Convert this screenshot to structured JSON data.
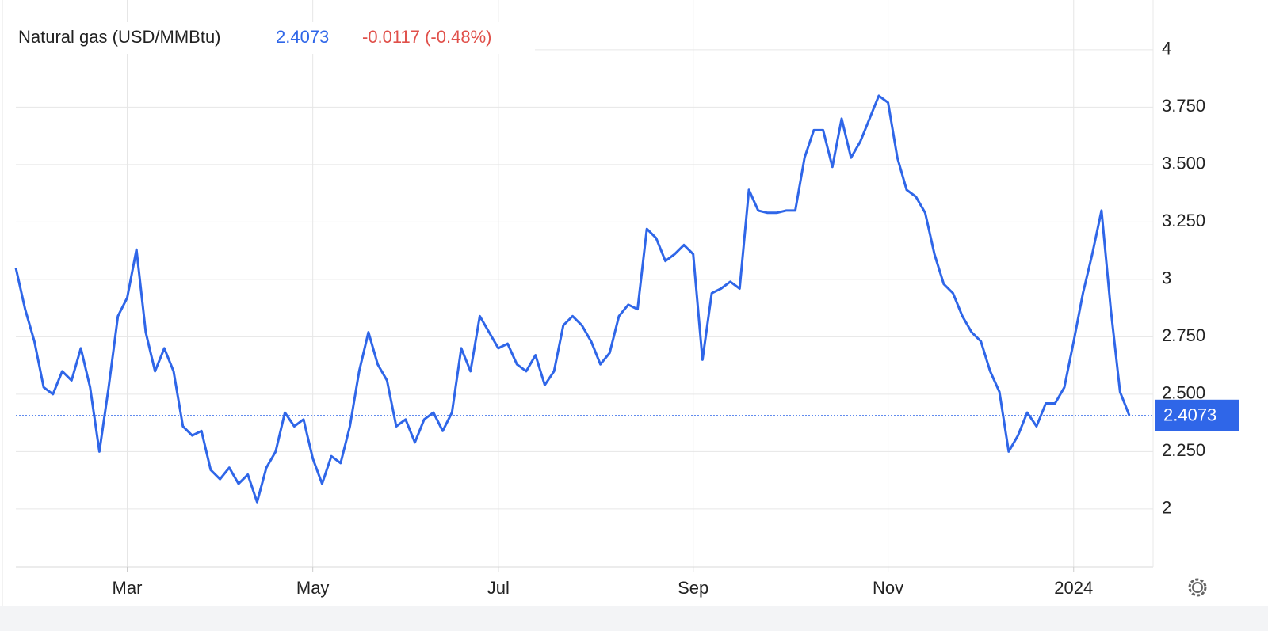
{
  "chart_data": {
    "type": "line",
    "title": "Natural gas (USD/MMBtu)",
    "current_value": 2.4073,
    "change": "-0.0117 (-0.48%)",
    "categories": [
      null,
      null,
      null,
      null,
      null,
      null,
      null,
      null,
      null,
      null,
      null,
      null,
      "Mar",
      null,
      null,
      null,
      null,
      null,
      null,
      null,
      null,
      null,
      null,
      null,
      null,
      null,
      null,
      null,
      null,
      null,
      null,
      null,
      "May",
      null,
      null,
      null,
      null,
      null,
      null,
      null,
      null,
      null,
      null,
      null,
      null,
      null,
      null,
      null,
      null,
      null,
      null,
      null,
      "Jul",
      null,
      null,
      null,
      null,
      null,
      null,
      null,
      null,
      null,
      null,
      null,
      null,
      null,
      null,
      null,
      null,
      null,
      null,
      null,
      null,
      "Sep",
      null,
      null,
      null,
      null,
      null,
      null,
      null,
      null,
      null,
      null,
      null,
      null,
      null,
      null,
      null,
      null,
      null,
      null,
      null,
      null,
      "Nov",
      null,
      null,
      null,
      null,
      null,
      null,
      null,
      null,
      null,
      null,
      null,
      null,
      null,
      null,
      null,
      null,
      null,
      null,
      null,
      "2024",
      null,
      null,
      null,
      null,
      null,
      null
    ],
    "series": [
      {
        "name": "Natural gas (USD/MMBtu)",
        "color": "#2f66e8",
        "values": [
          3.05,
          2.87,
          2.73,
          2.53,
          2.5,
          2.6,
          2.56,
          2.7,
          2.53,
          2.25,
          2.53,
          2.84,
          2.92,
          3.13,
          2.77,
          2.6,
          2.7,
          2.6,
          2.36,
          2.32,
          2.34,
          2.17,
          2.13,
          2.18,
          2.11,
          2.15,
          2.03,
          2.18,
          2.25,
          2.42,
          2.36,
          2.39,
          2.22,
          2.11,
          2.23,
          2.2,
          2.36,
          2.6,
          2.77,
          2.63,
          2.56,
          2.36,
          2.39,
          2.29,
          2.39,
          2.42,
          2.34,
          2.42,
          2.7,
          2.6,
          2.84,
          2.77,
          2.7,
          2.72,
          2.63,
          2.6,
          2.67,
          2.54,
          2.6,
          2.8,
          2.84,
          2.8,
          2.73,
          2.63,
          2.68,
          2.84,
          2.89,
          2.87,
          3.22,
          3.18,
          3.08,
          3.11,
          3.15,
          3.11,
          2.65,
          2.94,
          2.96,
          2.99,
          2.96,
          3.39,
          3.3,
          3.29,
          3.29,
          3.3,
          3.3,
          3.53,
          3.65,
          3.65,
          3.49,
          3.7,
          3.53,
          3.6,
          3.7,
          3.8,
          3.77,
          3.53,
          3.39,
          3.36,
          3.29,
          3.11,
          2.98,
          2.94,
          2.84,
          2.77,
          2.73,
          2.6,
          2.51,
          2.25,
          2.32,
          2.42,
          2.36,
          2.46,
          2.46,
          2.53,
          2.73,
          2.94,
          3.11,
          3.3,
          2.87,
          2.51,
          2.4073
        ]
      }
    ],
    "ylim": [
      1.748,
      4.217
    ],
    "yticks": [
      2,
      {
        "value": 2.25,
        "label": "2.250"
      },
      {
        "value": 2.5,
        "label": "2.500"
      },
      {
        "value": 2.75,
        "label": "2.750"
      },
      3,
      {
        "value": 3.25,
        "label": "3.250"
      },
      {
        "value": 3.5,
        "label": "3.500"
      },
      {
        "value": 3.75,
        "label": "3.750"
      },
      4
    ],
    "grid": true
  }
}
